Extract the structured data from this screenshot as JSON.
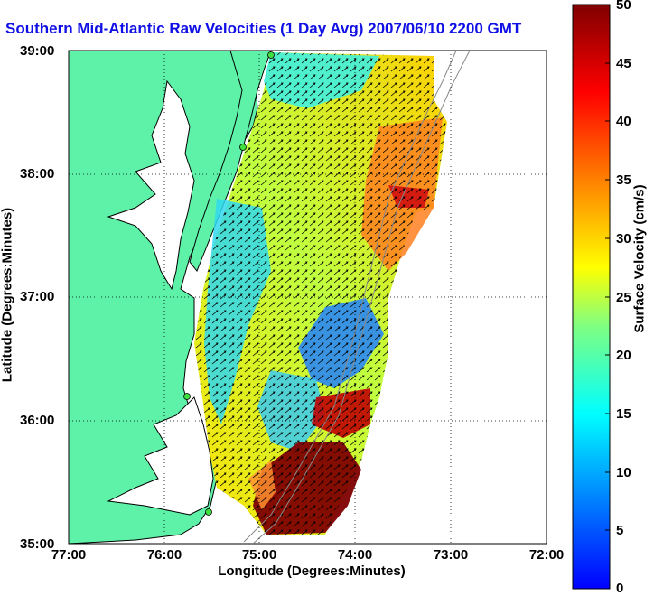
{
  "title": "Southern Mid-Atlantic Raw Velocities (1 Day Avg) 2007/06/10 2200 GMT",
  "axes": {
    "xlabel": "Longitude (Degrees:Minutes)",
    "ylabel": "Latitude (Degrees:Minutes)",
    "xticks": [
      "77:00",
      "76:00",
      "75:00",
      "74:00",
      "73:00",
      "72:00"
    ],
    "yticks": [
      "39:00",
      "38:00",
      "37:00",
      "36:00",
      "35:00"
    ]
  },
  "colorbar": {
    "label": "Surface Velocity (cm/s)",
    "ticks": [
      "50",
      "45",
      "40",
      "35",
      "30",
      "25",
      "20",
      "15",
      "10",
      "5",
      "0"
    ],
    "min": 0,
    "max": 50,
    "stops": [
      "#0000ff",
      "#00ffff",
      "#ffff00",
      "#ff8000",
      "#ff0000",
      "#800000"
    ]
  },
  "colors": {
    "land": "#5ef2a8",
    "coast": "#000000",
    "grid": "#000000"
  }
}
